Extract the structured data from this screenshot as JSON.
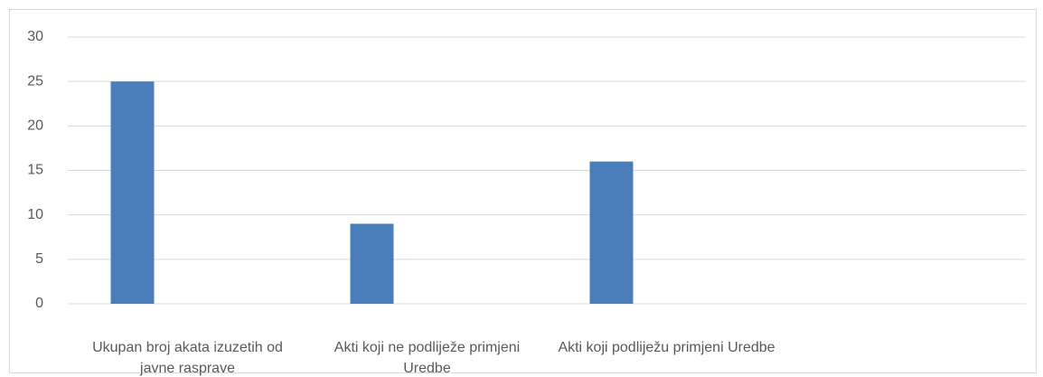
{
  "chart_data": {
    "type": "bar",
    "categories": [
      "Ukupan broj akata izuzetih od javne rasprave",
      "Akti koji ne podliježe primjeni Uredbe",
      "Akti koji podliježu primjeni Uredbe",
      null
    ],
    "values": [
      25,
      9,
      16,
      null
    ],
    "color": "#4a7ebb",
    "ylim": [
      0,
      30
    ],
    "yticks": [
      0,
      5,
      10,
      15,
      20,
      25,
      30
    ],
    "grid": true
  }
}
